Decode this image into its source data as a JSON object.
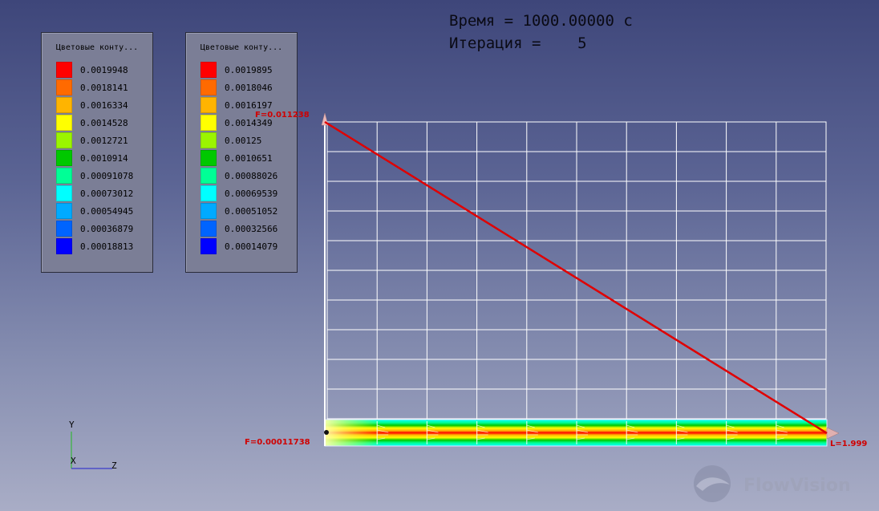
{
  "header": {
    "time_line": "Время = 1000.00000 с",
    "iteration_line": "Итерация =    5"
  },
  "legends": [
    {
      "title": "Цветовые конту...",
      "entries": [
        {
          "value": "0.0019948",
          "color": "#ff0000"
        },
        {
          "value": "0.0018141",
          "color": "#ff6a00"
        },
        {
          "value": "0.0016334",
          "color": "#ffb400"
        },
        {
          "value": "0.0014528",
          "color": "#ffff00"
        },
        {
          "value": "0.0012721",
          "color": "#9bf500"
        },
        {
          "value": "0.0010914",
          "color": "#00c800"
        },
        {
          "value": "0.00091078",
          "color": "#00ff96"
        },
        {
          "value": "0.00073012",
          "color": "#00ffff"
        },
        {
          "value": "0.00054945",
          "color": "#00aaff"
        },
        {
          "value": "0.00036879",
          "color": "#0064ff"
        },
        {
          "value": "0.00018813",
          "color": "#0000ff"
        }
      ]
    },
    {
      "title": "Цветовые конту...",
      "entries": [
        {
          "value": "0.0019895",
          "color": "#ff0000"
        },
        {
          "value": "0.0018046",
          "color": "#ff6a00"
        },
        {
          "value": "0.0016197",
          "color": "#ffb400"
        },
        {
          "value": "0.0014349",
          "color": "#ffff00"
        },
        {
          "value": "0.00125",
          "color": "#9bf500"
        },
        {
          "value": "0.0010651",
          "color": "#00c800"
        },
        {
          "value": "0.00088026",
          "color": "#00ff96"
        },
        {
          "value": "0.00069539",
          "color": "#00ffff"
        },
        {
          "value": "0.00051052",
          "color": "#00aaff"
        },
        {
          "value": "0.00032566",
          "color": "#0064ff"
        },
        {
          "value": "0.00014079",
          "color": "#0000ff"
        }
      ]
    }
  ],
  "plot": {
    "f_max_label": "F=0.011238",
    "f_min_label": "F=0.00011738",
    "l_label": "L=1.999",
    "line_color": "#e00000"
  },
  "axes": {
    "y_label": "Y",
    "x_label": "X",
    "z_label": "Z"
  },
  "brand": {
    "name": "FlowVision",
    "icon": "flowvision-logo-icon"
  }
}
